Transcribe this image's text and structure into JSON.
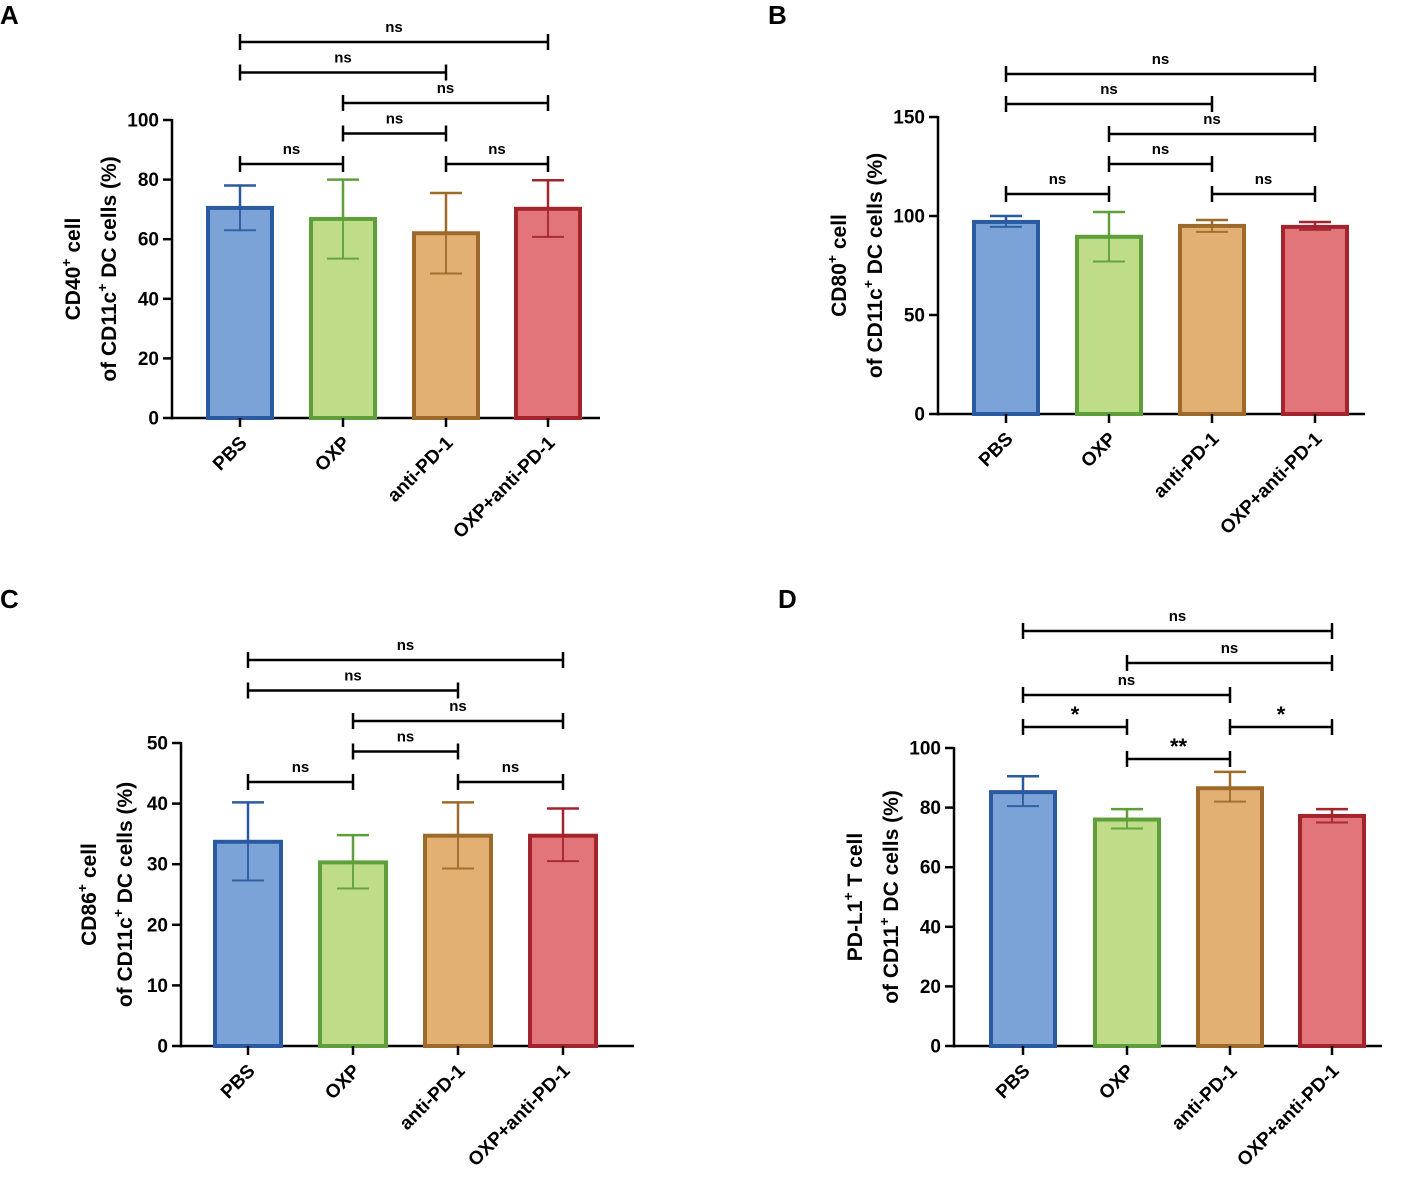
{
  "figure_title": "",
  "colors": {
    "PBS": {
      "fill": "#7ba3d8",
      "stroke": "#2a5aa0"
    },
    "OXP": {
      "fill": "#bfdc88",
      "stroke": "#5e9f3c"
    },
    "anti-PD-1": {
      "fill": "#e2b072",
      "stroke": "#9e6a2a"
    },
    "OXP+anti-PD-1": {
      "fill": "#e2757a",
      "stroke": "#a3242c"
    }
  },
  "chart_data": [
    {
      "type": "bar",
      "panel": "A",
      "ylabel_line1": "CD40",
      "ylabel_sup1": "+",
      "ylabel_line1_rest": " cell",
      "ylabel_line2_pre": "of CD11c",
      "ylabel_sup2": "+",
      "ylabel_line2_post": " DC cells (%)",
      "categories": [
        "PBS",
        "OXP",
        "anti-PD-1",
        "OXP+anti-PD-1"
      ],
      "values": [
        70.5,
        66.8,
        62.0,
        70.2
      ],
      "errors_upper": [
        78.0,
        80.0,
        75.5,
        79.8
      ],
      "errors_lower": [
        63.0,
        53.5,
        48.5,
        60.8
      ],
      "ylim": [
        0,
        100
      ],
      "yticks": [
        0,
        20,
        40,
        60,
        80,
        100
      ],
      "comparisons": [
        {
          "a": 0,
          "b": 1,
          "label": "ns",
          "level": 0
        },
        {
          "a": 1,
          "b": 2,
          "label": "ns",
          "level": 1
        },
        {
          "a": 2,
          "b": 3,
          "label": "ns",
          "level": 0
        },
        {
          "a": 1,
          "b": 3,
          "label": "ns",
          "level": 2
        },
        {
          "a": 0,
          "b": 2,
          "label": "ns",
          "level": 3
        },
        {
          "a": 0,
          "b": 3,
          "label": "ns",
          "level": 4
        }
      ]
    },
    {
      "type": "bar",
      "panel": "B",
      "ylabel_line1": "CD80",
      "ylabel_sup1": "+",
      "ylabel_line1_rest": " cell",
      "ylabel_line2_pre": "of CD11c",
      "ylabel_sup2": "+",
      "ylabel_line2_post": " DC cells (%)",
      "categories": [
        "PBS",
        "OXP",
        "anti-PD-1",
        "OXP+anti-PD-1"
      ],
      "values": [
        97.0,
        89.5,
        95.0,
        94.5
      ],
      "errors_upper": [
        100.0,
        102.0,
        98.0,
        97.0
      ],
      "errors_lower": [
        94.5,
        77.0,
        92.0,
        93.0
      ],
      "ylim": [
        0,
        150
      ],
      "yticks": [
        0,
        50,
        100,
        150
      ],
      "comparisons": [
        {
          "a": 0,
          "b": 1,
          "label": "ns",
          "level": 0
        },
        {
          "a": 1,
          "b": 2,
          "label": "ns",
          "level": 1
        },
        {
          "a": 2,
          "b": 3,
          "label": "ns",
          "level": 0
        },
        {
          "a": 1,
          "b": 3,
          "label": "ns",
          "level": 2
        },
        {
          "a": 0,
          "b": 2,
          "label": "ns",
          "level": 3
        },
        {
          "a": 0,
          "b": 3,
          "label": "ns",
          "level": 4
        }
      ]
    },
    {
      "type": "bar",
      "panel": "C",
      "ylabel_line1": "CD86",
      "ylabel_sup1": "+",
      "ylabel_line1_rest": " cell",
      "ylabel_line2_pre": "of CD11c",
      "ylabel_sup2": "+",
      "ylabel_line2_post": " DC cells (%)",
      "categories": [
        "PBS",
        "OXP",
        "anti-PD-1",
        "OXP+anti-PD-1"
      ],
      "values": [
        33.7,
        30.3,
        34.7,
        34.7
      ],
      "errors_upper": [
        40.2,
        34.8,
        40.2,
        39.2
      ],
      "errors_lower": [
        27.3,
        26.0,
        29.3,
        30.5
      ],
      "ylim": [
        0,
        50
      ],
      "yticks": [
        0,
        10,
        20,
        30,
        40,
        50
      ],
      "comparisons": [
        {
          "a": 0,
          "b": 1,
          "label": "ns",
          "level": 0
        },
        {
          "a": 1,
          "b": 2,
          "label": "ns",
          "level": 1
        },
        {
          "a": 2,
          "b": 3,
          "label": "ns",
          "level": 0
        },
        {
          "a": 1,
          "b": 3,
          "label": "ns",
          "level": 2
        },
        {
          "a": 0,
          "b": 2,
          "label": "ns",
          "level": 3
        },
        {
          "a": 0,
          "b": 3,
          "label": "ns",
          "level": 4
        }
      ]
    },
    {
      "type": "bar",
      "panel": "D",
      "ylabel_line1": "PD-L1",
      "ylabel_sup1": "+",
      "ylabel_line1_rest": " T cell",
      "ylabel_line2_pre": "of CD11",
      "ylabel_sup2": "+",
      "ylabel_line2_post": " DC cells (%)",
      "categories": [
        "PBS",
        "OXP",
        "anti-PD-1",
        "OXP+anti-PD-1"
      ],
      "values": [
        85.2,
        76.0,
        86.5,
        77.2
      ],
      "errors_upper": [
        90.5,
        79.5,
        92.0,
        79.5
      ],
      "errors_lower": [
        80.5,
        73.0,
        82.0,
        75.0
      ],
      "ylim": [
        0,
        100
      ],
      "yticks": [
        0,
        20,
        40,
        60,
        80,
        100
      ],
      "comparisons": [
        {
          "a": 1,
          "b": 2,
          "label": "**",
          "level": 0
        },
        {
          "a": 0,
          "b": 1,
          "label": "*",
          "level": 1
        },
        {
          "a": 2,
          "b": 3,
          "label": "*",
          "level": 1
        },
        {
          "a": 0,
          "b": 2,
          "label": "ns",
          "level": 2
        },
        {
          "a": 1,
          "b": 3,
          "label": "ns",
          "level": 3
        },
        {
          "a": 0,
          "b": 3,
          "label": "ns",
          "level": 4
        }
      ]
    }
  ]
}
